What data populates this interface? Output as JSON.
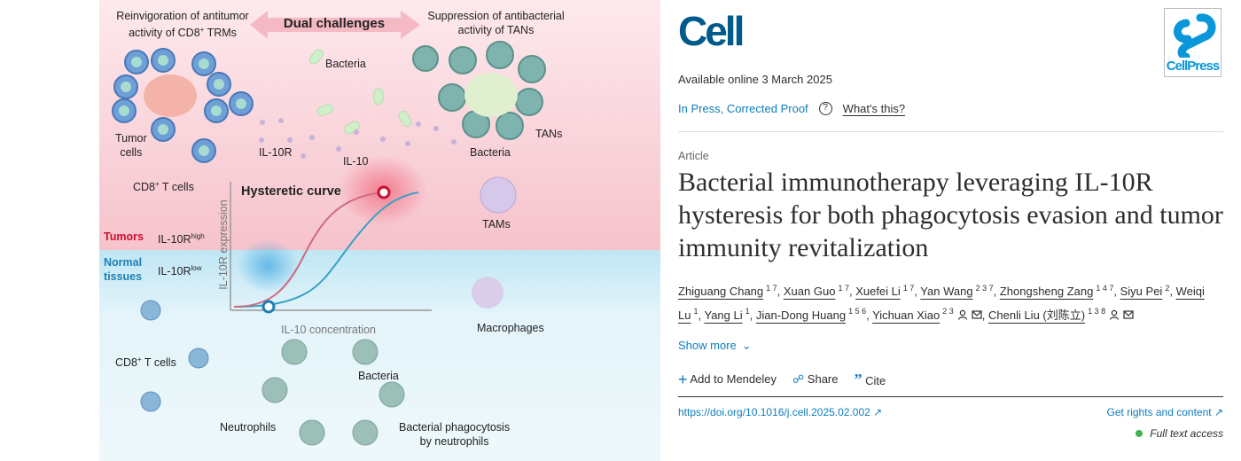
{
  "graphical_abstract": {
    "top_left_title": [
      "Reinvigoration of antitumor",
      "activity of CD8",
      "+",
      " TRMs"
    ],
    "dual_challenges": "Dual challenges",
    "top_right_title": [
      "Suppression of antibacterial",
      "activity of TANs"
    ],
    "bacteria_top": "Bacteria",
    "tumor_cells": [
      "Tumor",
      "cells"
    ],
    "il10r": "IL-10R",
    "il10": "IL-10",
    "cd8_top": [
      "CD8",
      "+",
      " T cells"
    ],
    "hysteretic_curve": "Hysteretic curve",
    "bacteria_tans": "Bacteria",
    "tans": "TANs",
    "tams": "TAMs",
    "tumors": "Tumors",
    "il10r_high": [
      "IL-10R",
      "high"
    ],
    "normal_tissues": [
      "Normal",
      "tissues"
    ],
    "il10r_low": [
      "IL-10R",
      "low"
    ],
    "y_axis": "IL-10R expression",
    "x_axis": "IL-10 concentration",
    "macrophages": "Macrophages",
    "cd8_bottom": [
      "CD8",
      "+",
      " T cells"
    ],
    "bacteria_bottom": "Bacteria",
    "neutrophils": "Neutrophils",
    "phagocytosis": [
      "Bacterial phagocytosis",
      "by neutrophils"
    ],
    "colors": {
      "tumor_bg": "#fbe3e7",
      "normal_bg": "#dff2f8",
      "tumor_label": "#c8102e",
      "normal_label": "#1f7fb5",
      "curve_up": "#3aa0c4",
      "curve_down": "#d06a80"
    }
  },
  "journal": {
    "logo": "Cell",
    "publisher_logo": "CellPress"
  },
  "available_online": "Available online 3 March 2025",
  "status": {
    "label": "In Press, Corrected Proof",
    "help_icon": "question-circle-icon",
    "whats_this": "What's this?"
  },
  "article_type": "Article",
  "title": "Bacterial immunotherapy leveraging IL-10R hysteresis for both phagocytosis evasion and tumor immunity revitalization",
  "authors": [
    {
      "name": "Zhiguang Chang",
      "aff": "1 7"
    },
    {
      "name": "Xuan Guo",
      "aff": "1 7"
    },
    {
      "name": "Xuefei Li",
      "aff": "1 7"
    },
    {
      "name": "Yan Wang",
      "aff": "2 3 7"
    },
    {
      "name": "Zhongsheng Zang",
      "aff": "1 4 7"
    },
    {
      "name": "Siyu Pei",
      "aff": "2"
    },
    {
      "name": "Weiqi Lu",
      "aff": "1"
    },
    {
      "name": "Yang Li",
      "aff": "1"
    },
    {
      "name": "Jian-Dong Huang",
      "aff": "1 5 6"
    },
    {
      "name": "Yichuan Xiao",
      "aff": "2 3",
      "icons": "person-icon mail-icon"
    },
    {
      "name": "Chenli Liu (刘陈立)",
      "aff": "1 3 8",
      "icons": "person-icon mail-icon"
    }
  ],
  "show_more": "Show more",
  "actions": {
    "mendeley": "Add to Mendeley",
    "share": "Share",
    "cite": "Cite"
  },
  "doi": "https://doi.org/10.1016/j.cell.2025.02.002",
  "rights": "Get rights and content",
  "access": "Full text access",
  "colors": {
    "link": "#0c7dbb",
    "cell_brand": "#005a8c",
    "cellpress_brand": "#0a97d9",
    "access_dot": "#3fb34f"
  }
}
